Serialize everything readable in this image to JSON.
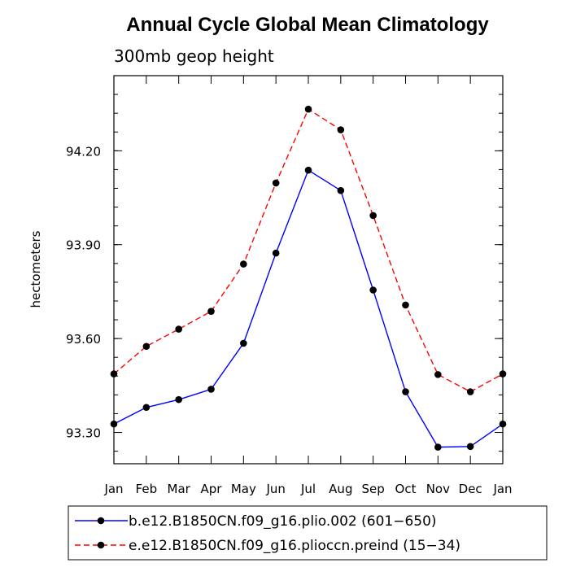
{
  "chart_data": {
    "type": "line",
    "title": "Annual Cycle Global Mean Climatology",
    "subtitle": "300mb geop height",
    "xlabel": "",
    "ylabel": "hectometers",
    "categories": [
      "Jan",
      "Feb",
      "Mar",
      "Apr",
      "May",
      "Jun",
      "Jul",
      "Aug",
      "Sep",
      "Oct",
      "Nov",
      "Dec",
      "Jan"
    ],
    "ylim": [
      93.2,
      94.44
    ],
    "yticks": [
      93.3,
      93.6,
      93.9,
      94.2
    ],
    "ytick_labels": [
      "93.30",
      "93.60",
      "93.90",
      "94.20"
    ],
    "grid": false,
    "legend_position": "bottom",
    "series": [
      {
        "name": "b.e12.B1850CN.f09_g16.plio.002 (601−650)",
        "color": "#0000ff",
        "style": "solid",
        "values": [
          93.327,
          93.38,
          93.405,
          93.438,
          93.585,
          93.873,
          94.138,
          94.073,
          93.755,
          93.43,
          93.253,
          93.255,
          93.327
        ]
      },
      {
        "name": "e.e12.B1850CN.f09_g16.plioccn.preind (15−34)",
        "color": "#ff0000",
        "style": "dashed",
        "values": [
          93.487,
          93.575,
          93.63,
          93.687,
          93.838,
          94.097,
          94.333,
          94.267,
          93.993,
          93.707,
          93.485,
          93.43,
          93.487
        ]
      }
    ]
  }
}
